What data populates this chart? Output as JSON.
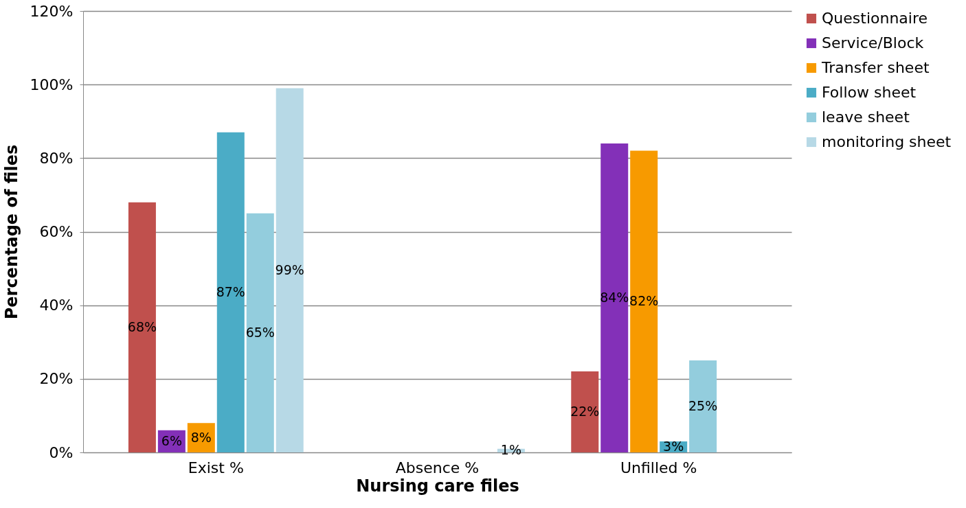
{
  "chart_data": {
    "type": "bar",
    "xlabel": "Nursing care files",
    "ylabel": "Percentage of files",
    "categories": [
      "Exist %",
      "Absence %",
      "Unfilled %"
    ],
    "series": [
      {
        "name": "Questionnaire",
        "color": "#c0504d",
        "values": [
          68,
          0,
          22
        ],
        "value_labels": [
          "68%",
          null,
          "22%"
        ]
      },
      {
        "name": "Service/Block",
        "color": "#8330b8",
        "values": [
          6,
          0,
          84
        ],
        "value_labels": [
          "6%",
          null,
          "84%"
        ]
      },
      {
        "name": "Transfer sheet",
        "color": "#f79a00",
        "values": [
          8,
          0,
          82
        ],
        "value_labels": [
          "8%",
          null,
          "82%"
        ]
      },
      {
        "name": "Follow sheet",
        "color": "#4bacc6",
        "values": [
          87,
          0,
          3
        ],
        "value_labels": [
          "87%",
          null,
          "3%"
        ]
      },
      {
        "name": "leave sheet",
        "color": "#93cddd",
        "values": [
          65,
          0,
          25
        ],
        "value_labels": [
          "65%",
          null,
          "25%"
        ]
      },
      {
        "name": "monitoring sheet",
        "color": "#b7d9e6",
        "values": [
          99,
          1,
          0
        ],
        "value_labels": [
          "99%",
          "1%",
          null
        ]
      }
    ],
    "ylim": [
      0,
      120
    ],
    "yticks": [
      {
        "value": 0,
        "label": "0%"
      },
      {
        "value": 20,
        "label": "20%"
      },
      {
        "value": 40,
        "label": "40%"
      },
      {
        "value": 60,
        "label": "60%"
      },
      {
        "value": 80,
        "label": "80%"
      },
      {
        "value": 100,
        "label": "100%"
      },
      {
        "value": 120,
        "label": "120%"
      }
    ],
    "grid": "y",
    "legend": "right"
  }
}
